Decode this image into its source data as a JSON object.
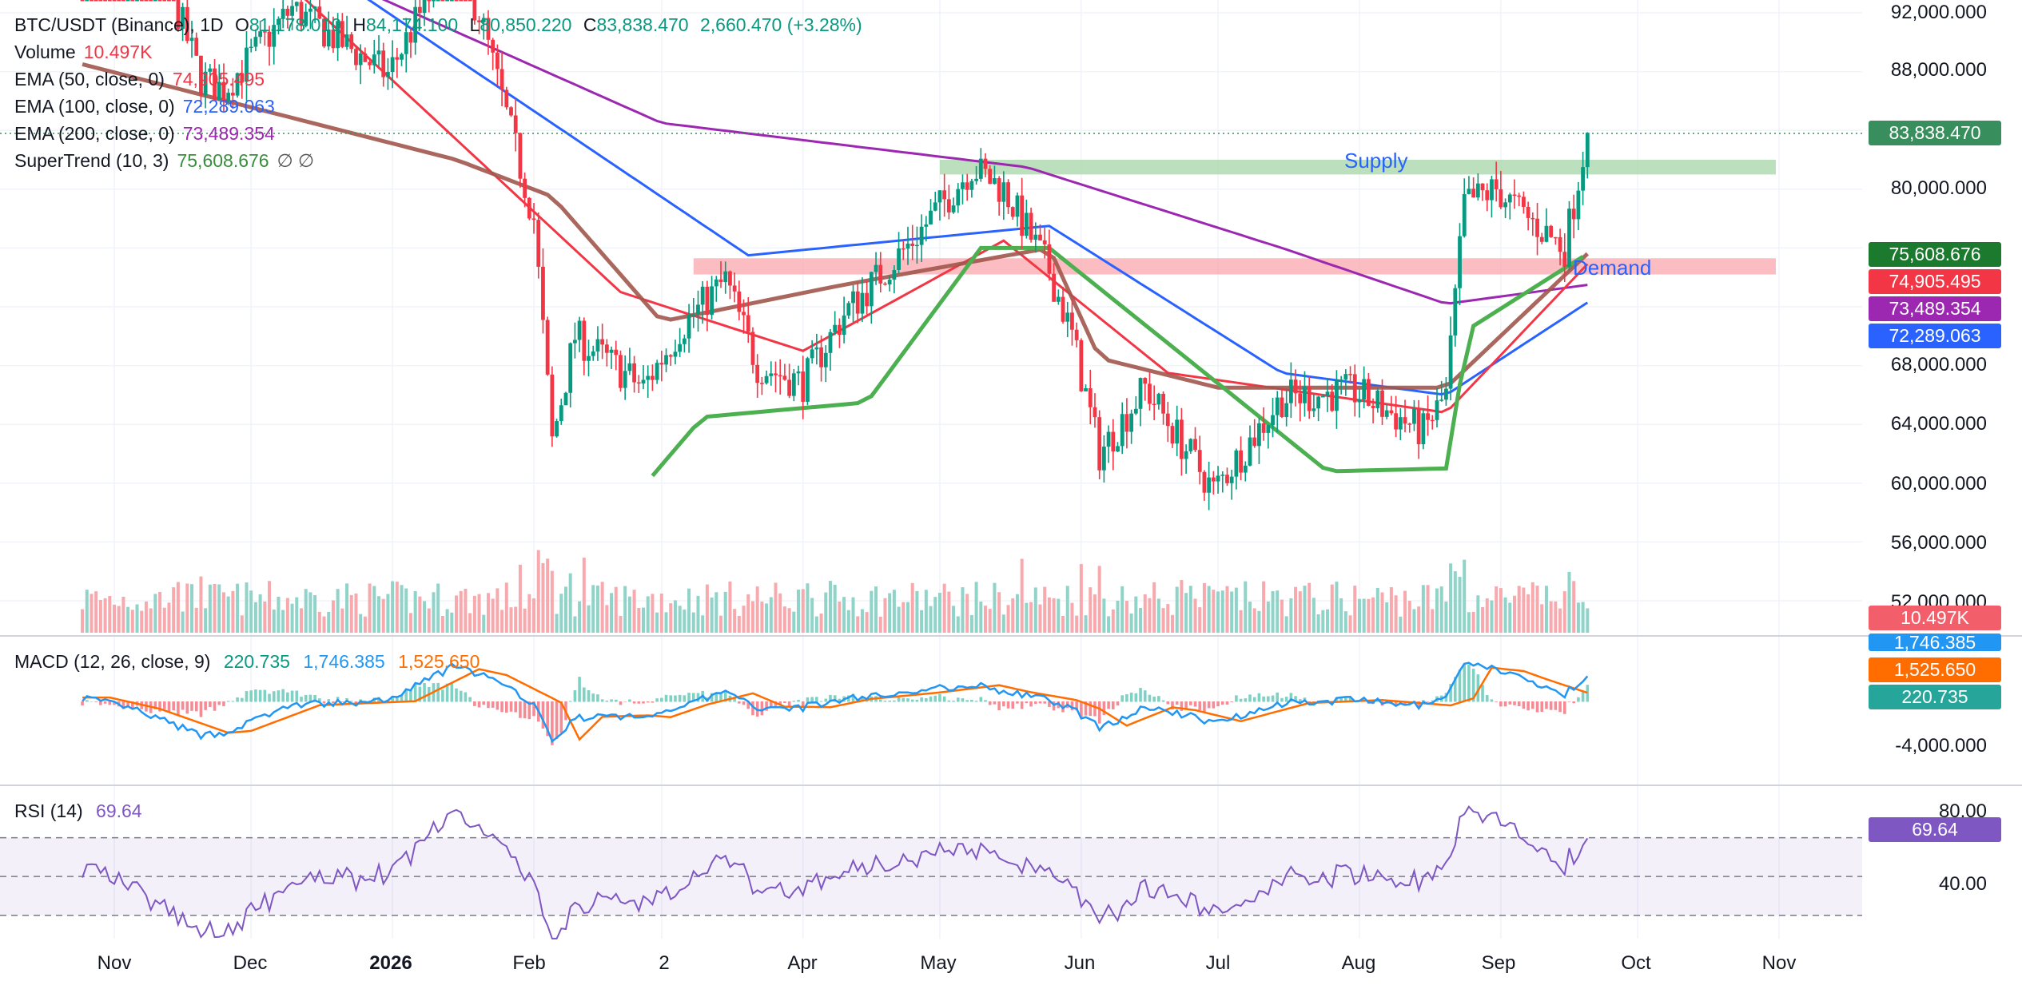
{
  "header": {
    "symbol": "BTC/USDT (Binance), 1D",
    "ohlc": [
      {
        "k": "O",
        "v": "81,178.010"
      },
      {
        "k": "H",
        "v": "84,174.100"
      },
      {
        "k": "L",
        "v": "80,850.220"
      },
      {
        "k": "C",
        "v": "83,838.470"
      }
    ],
    "change": "2,660.470 (+3.28%)",
    "volume_label": "Volume",
    "volume_value": "10.497K",
    "ema50_label": "EMA (50, close, 0)",
    "ema50_value": "74,905.495",
    "ema100_label": "EMA (100, close, 0)",
    "ema100_value": "72,289.063",
    "ema200_label": "EMA (200, close, 0)",
    "ema200_value": "73,489.354",
    "st_label": "SuperTrend (10, 3)",
    "st_value": "75,608.676",
    "st_extra": "∅  ∅"
  },
  "macd_legend": {
    "label": "MACD (12, 26, close, 9)",
    "hist": "220.735",
    "macd": "1,746.385",
    "signal": "1,525.650"
  },
  "rsi_legend": {
    "label": "RSI (14)",
    "value": "69.64"
  },
  "price_axis": [
    "92,000.000",
    "88,000.000",
    "80,000.000",
    "68,000.000",
    "64,000.000",
    "60,000.000",
    "56,000.000",
    "52,000.000"
  ],
  "macd_axis": [
    "-4,000.000"
  ],
  "rsi_axis": [
    "80.00",
    "40.00"
  ],
  "tags": {
    "price": "83,838.470",
    "st": "75,608.676",
    "ema50": "74,905.495",
    "ema200": "73,489.354",
    "ema100": "72,289.063",
    "volume": "10.497K",
    "macd": "1,746.385",
    "signal": "1,525.650",
    "hist": "220.735",
    "rsi": "69.64"
  },
  "zones": {
    "supply": "Supply",
    "demand": "Demand"
  },
  "x_labels": [
    "Nov",
    "Dec",
    "2026",
    "Feb",
    "2",
    "Apr",
    "May",
    "Jun",
    "Jul",
    "Aug",
    "Sep",
    "Oct",
    "Nov"
  ],
  "colors": {
    "up": "#089981",
    "down": "#f23645",
    "ema50": "#f23645",
    "ema100": "#2962ff",
    "ema200": "#9c27b0",
    "st_up": "#4caf50",
    "st_down": "#a1574c",
    "macd": "#2196f3",
    "signal": "#ff6d00",
    "rsi": "#7e57c2",
    "supply": "#a5d6a7",
    "demand": "#f9a7ae",
    "price_tag": "#388e5c"
  },
  "chart_data": {
    "type": "candlestick",
    "note_x": "date axis, Oct 2025 – Nov 2026, daily candles through ~Sep 20",
    "price_ylim": [
      51000,
      93000
    ],
    "price_path": [
      [
        "2025-10-25",
        108500
      ],
      [
        "2025-11-05",
        101000
      ],
      [
        "2025-11-20",
        87500
      ],
      [
        "2025-11-25",
        86800
      ],
      [
        "2025-12-10",
        92300
      ],
      [
        "2025-12-31",
        87800
      ],
      [
        "2026-01-14",
        96000
      ],
      [
        "2026-01-20",
        92000
      ],
      [
        "2026-02-01",
        78000
      ],
      [
        "2026-02-05",
        62800
      ],
      [
        "2026-02-10",
        70000
      ],
      [
        "2026-02-25",
        66500
      ],
      [
        "2026-03-05",
        70500
      ],
      [
        "2026-03-15",
        73800
      ],
      [
        "2026-03-22",
        68000
      ],
      [
        "2026-04-01",
        66800
      ],
      [
        "2026-04-10",
        71500
      ],
      [
        "2026-04-25",
        76500
      ],
      [
        "2026-05-08",
        81500
      ],
      [
        "2026-05-15",
        80000
      ],
      [
        "2026-05-25",
        74500
      ],
      [
        "2026-05-30",
        70000
      ],
      [
        "2026-06-05",
        62000
      ],
      [
        "2026-06-15",
        66500
      ],
      [
        "2026-06-30",
        59500
      ],
      [
        "2026-07-15",
        65800
      ],
      [
        "2026-07-31",
        66200
      ],
      [
        "2026-08-15",
        63500
      ],
      [
        "2026-08-20",
        66000
      ],
      [
        "2026-08-24",
        79000
      ],
      [
        "2026-08-31",
        80000
      ],
      [
        "2026-09-05",
        78500
      ],
      [
        "2026-09-15",
        76000
      ],
      [
        "2026-09-20",
        83838.47
      ]
    ],
    "ema50_path": [
      [
        "2025-10-25",
        107000
      ],
      [
        "2026-02-20",
        73000
      ],
      [
        "2026-04-01",
        69000
      ],
      [
        "2026-05-15",
        76500
      ],
      [
        "2026-06-20",
        67500
      ],
      [
        "2026-08-20",
        64800
      ],
      [
        "2026-09-20",
        74905.495
      ]
    ],
    "ema100_path": [
      [
        "2025-10-25",
        106000
      ],
      [
        "2026-03-20",
        75500
      ],
      [
        "2026-05-25",
        77500
      ],
      [
        "2026-07-15",
        67500
      ],
      [
        "2026-08-20",
        66000
      ],
      [
        "2026-09-20",
        72289.063
      ]
    ],
    "ema200_path": [
      [
        "2025-10-25",
        102000
      ],
      [
        "2026-03-01",
        84500
      ],
      [
        "2026-05-20",
        81500
      ],
      [
        "2026-07-15",
        76000
      ],
      [
        "2026-08-20",
        72200
      ],
      [
        "2026-09-20",
        73489.354
      ]
    ],
    "supertrend_value": 75608.676,
    "supply_zone": [
      81000,
      82000
    ],
    "demand_zone": [
      74200,
      75300
    ],
    "volume_last": "10.497K",
    "macd": {
      "macd_last": 1746.385,
      "signal_last": 1525.65,
      "hist_last": 220.735,
      "ylim": [
        -6000,
        6000
      ]
    },
    "rsi": {
      "last": 69.64,
      "bands": [
        70,
        30
      ],
      "middle": 50,
      "ylim": [
        20,
        90
      ]
    }
  }
}
